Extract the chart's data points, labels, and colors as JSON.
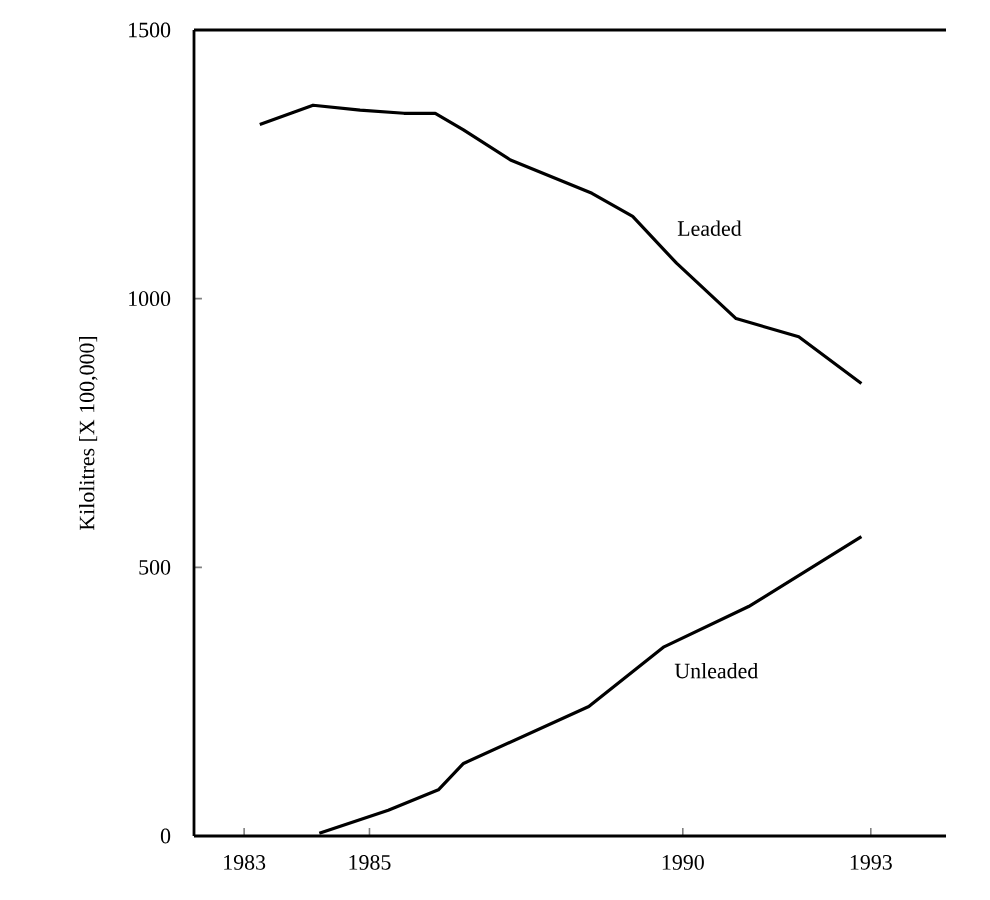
{
  "chart_data": {
    "type": "line",
    "ylabel": "Kilolitres [X 100,000]",
    "xlim": [
      1982.2,
      1994.2
    ],
    "ylim": [
      0,
      1500
    ],
    "xticks": [
      1983,
      1985,
      1990,
      1993
    ],
    "yticks": [
      0,
      500,
      1000,
      1500
    ],
    "grid": false,
    "legend": false,
    "marker": "none",
    "line_style": "solid",
    "series": [
      {
        "name": "Leaded",
        "color": "#000000",
        "x": [
          1983.25,
          1984.1,
          1984.85,
          1985.55,
          1986.05,
          1986.5,
          1987.25,
          1988.55,
          1989.2,
          1989.9,
          1990.85,
          1991.85,
          1992.85
        ],
        "values": [
          1324,
          1360,
          1351,
          1345,
          1345,
          1314,
          1258,
          1196,
          1153,
          1066,
          963,
          929,
          842
        ]
      },
      {
        "name": "Unleaded",
        "color": "#000000",
        "x": [
          1984.2,
          1985.3,
          1986.1,
          1986.5,
          1988.5,
          1989.7,
          1991.05,
          1992.85
        ],
        "values": [
          5,
          48,
          86,
          135,
          241,
          352,
          427,
          557
        ]
      }
    ]
  }
}
